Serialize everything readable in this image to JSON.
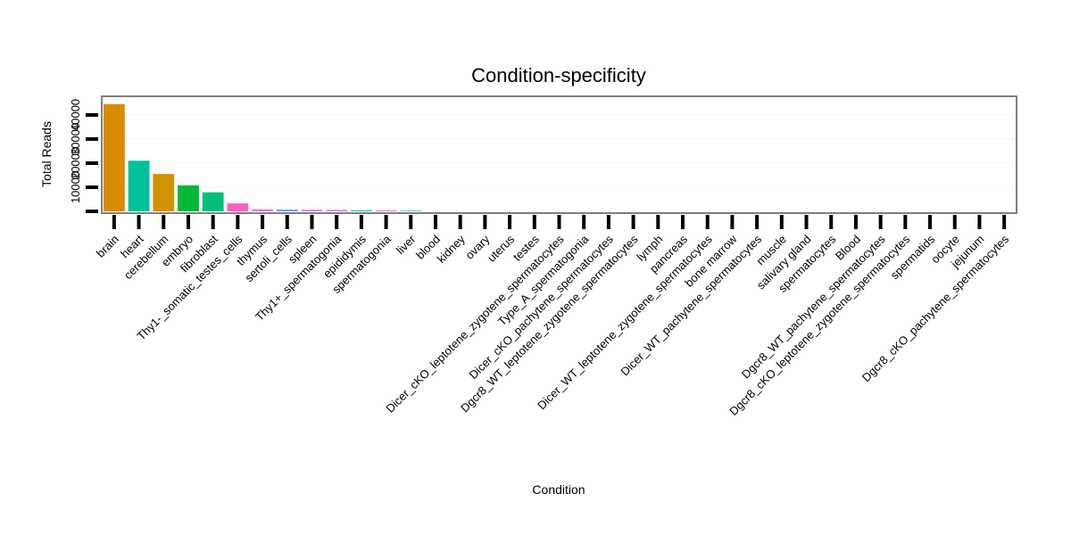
{
  "chart_data": {
    "type": "bar",
    "title": "Condition-specificity",
    "xlabel": "Condition",
    "ylabel": "Total Reads",
    "categories": [
      "brain",
      "heart",
      "cerebellum",
      "embryo",
      "fibroblast",
      "Thy1-_somatic_testes_cells",
      "thymus",
      "sertoli_cells",
      "spleen",
      "Thy1+_spermatogonia",
      "epididymis",
      "spermatogonia",
      "liver",
      "blood",
      "kidney",
      "ovary",
      "uterus",
      "testes",
      "Dicer_cKO_leptotene_zygotene_spermatocytes",
      "Type_A_spermatogonia",
      "Dicer_cKO_pachytene_spermatocytes",
      "Dgcr8_WT_leptotene_zygotene_spermatocytes",
      "lymph",
      "pancreas",
      "Dicer_WT_leptotene_zygotene_spermatocytes",
      "bone marrow",
      "Dicer_WT_pachytene_spermatocytes",
      "muscle",
      "salivary gland",
      "spermatocytes",
      "Blood",
      "Dgcr8_WT_pachytene_spermatocytes",
      "Dgcr8_cKO_leptotene_zygotene_spermatocytes",
      "spermatids",
      "oocyte",
      "jejunum",
      "Dgcr8_cKO_pachytene_spermatocytes"
    ],
    "values": [
      44500,
      21000,
      15500,
      10800,
      7900,
      3300,
      800,
      700,
      650,
      600,
      400,
      350,
      250,
      0,
      0,
      0,
      0,
      0,
      0,
      0,
      0,
      0,
      0,
      0,
      0,
      0,
      0,
      0,
      0,
      0,
      0,
      0,
      0,
      0,
      0,
      0,
      0
    ],
    "colors": [
      "#d98c00",
      "#00c19a",
      "#d39200",
      "#00b936",
      "#00bf7d",
      "#ff61c3",
      "#e76bf3",
      "#619cff",
      "#db72fb",
      "#c77cff",
      "#00bfc4",
      "#fc61d5",
      "#00b8e7",
      "#ffffff",
      "#ffffff",
      "#ffffff",
      "#ffffff",
      "#ffffff",
      "#ffffff",
      "#ffffff",
      "#ffffff",
      "#ffffff",
      "#ffffff",
      "#ffffff",
      "#ffffff",
      "#ffffff",
      "#ffffff",
      "#ffffff",
      "#ffffff",
      "#ffffff",
      "#ffffff",
      "#ffffff",
      "#ffffff",
      "#ffffff",
      "#ffffff",
      "#ffffff",
      "#ffffff"
    ],
    "yticks": [
      10000,
      20000,
      30000,
      40000
    ],
    "ytick_labels": [
      "10000",
      "20000",
      "30000",
      "40000"
    ],
    "ylim": [
      0,
      47000
    ],
    "grid": true,
    "legend": "none"
  }
}
